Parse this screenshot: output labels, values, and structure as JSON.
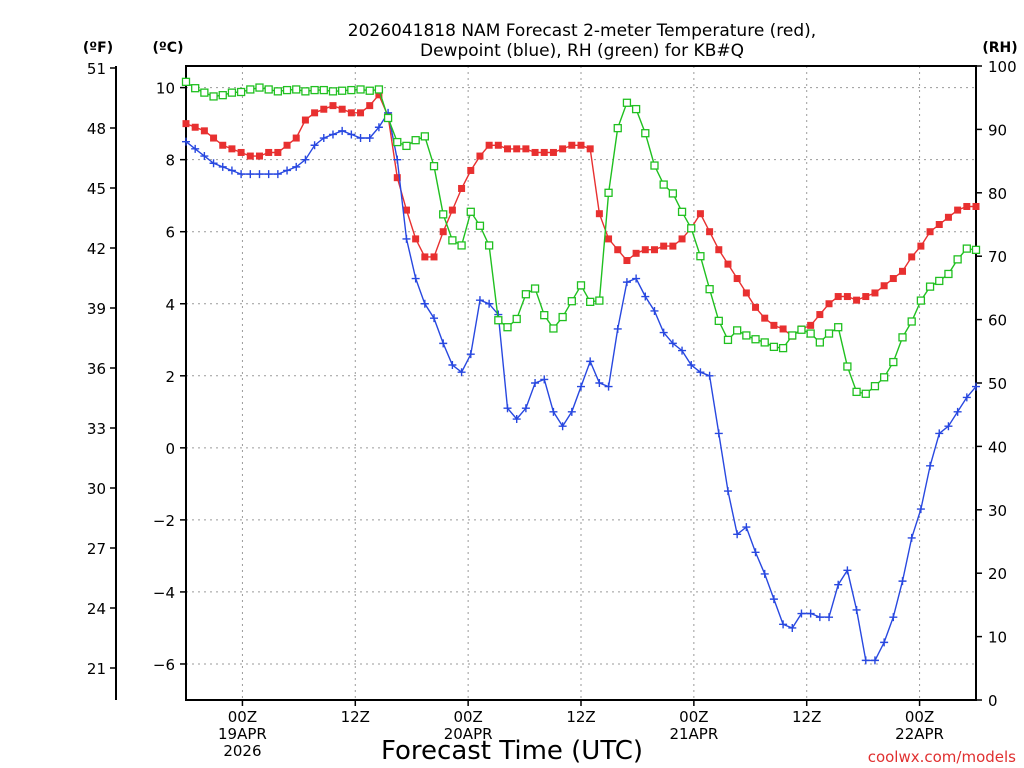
{
  "chart_data": {
    "type": "line",
    "title_line1": "2026041818 NAM Forecast 2-meter Temperature (red),",
    "title_line2": "Dewpoint (blue), RH (green) for KB#Q",
    "xlabel": "Forecast Time (UTC)",
    "left_outer_unit": "(ºF)",
    "left_inner_unit": "(ºC)",
    "right_unit": "(RH)",
    "credit": "coolwx.com/models",
    "x_start_hour": 18,
    "x_end_hour": 102,
    "celsius_range": [
      -7,
      10.6
    ],
    "fahrenheit_range": [
      19.4,
      51.1
    ],
    "rh_range": [
      0,
      100
    ],
    "x_ticks": [
      {
        "hour": 24,
        "line1": "00Z",
        "line2": "19APR",
        "line3": "2026"
      },
      {
        "hour": 36,
        "line1": "12Z",
        "line2": "",
        "line3": ""
      },
      {
        "hour": 48,
        "line1": "00Z",
        "line2": "20APR",
        "line3": ""
      },
      {
        "hour": 60,
        "line1": "12Z",
        "line2": "",
        "line3": ""
      },
      {
        "hour": 72,
        "line1": "00Z",
        "line2": "21APR",
        "line3": ""
      },
      {
        "hour": 84,
        "line1": "12Z",
        "line2": "",
        "line3": ""
      },
      {
        "hour": 96,
        "line1": "00Z",
        "line2": "22APR",
        "line3": ""
      }
    ],
    "celsius_ticks": [
      -6,
      -4,
      -2,
      0,
      2,
      4,
      6,
      8,
      10
    ],
    "fahrenheit_ticks": [
      21,
      24,
      27,
      30,
      33,
      36,
      39,
      42,
      45,
      48,
      51
    ],
    "rh_ticks": [
      0,
      10,
      20,
      30,
      40,
      50,
      60,
      70,
      80,
      90,
      100
    ],
    "grid": true,
    "series": [
      {
        "name": "Temperature",
        "unit": "C",
        "color": "#e83030",
        "marker": "filled-square",
        "values": [
          9.0,
          8.9,
          8.8,
          8.6,
          8.4,
          8.3,
          8.2,
          8.1,
          8.1,
          8.2,
          8.2,
          8.4,
          8.6,
          9.1,
          9.3,
          9.4,
          9.5,
          9.4,
          9.3,
          9.3,
          9.5,
          9.8,
          9.2,
          7.5,
          6.6,
          5.8,
          5.3,
          5.3,
          6.0,
          6.6,
          7.2,
          7.7,
          8.1,
          8.4,
          8.4,
          8.3,
          8.3,
          8.3,
          8.2,
          8.2,
          8.2,
          8.3,
          8.4,
          8.4,
          8.3,
          6.5,
          5.8,
          5.5,
          5.2,
          5.4,
          5.5,
          5.5,
          5.6,
          5.6,
          5.8,
          6.1,
          6.5,
          6.0,
          5.5,
          5.1,
          4.7,
          4.3,
          3.9,
          3.6,
          3.4,
          3.3,
          3.1,
          3.3,
          3.4,
          3.7,
          4.0,
          4.2,
          4.2,
          4.1,
          4.2,
          4.3,
          4.5,
          4.7,
          4.9,
          5.3,
          5.6,
          6.0,
          6.2,
          6.4,
          6.6,
          6.7,
          6.7
        ]
      },
      {
        "name": "Dewpoint",
        "unit": "C",
        "color": "#2848e0",
        "marker": "plus",
        "values": [
          8.5,
          8.3,
          8.1,
          7.9,
          7.8,
          7.7,
          7.6,
          7.6,
          7.6,
          7.6,
          7.6,
          7.7,
          7.8,
          8.0,
          8.4,
          8.6,
          8.7,
          8.8,
          8.7,
          8.6,
          8.6,
          8.9,
          9.3,
          8.0,
          5.8,
          4.7,
          4.0,
          3.6,
          2.9,
          2.3,
          2.1,
          2.6,
          4.1,
          4.0,
          3.7,
          1.1,
          0.8,
          1.1,
          1.8,
          1.9,
          1.0,
          0.6,
          1.0,
          1.7,
          2.4,
          1.8,
          1.7,
          3.3,
          4.6,
          4.7,
          4.2,
          3.8,
          3.2,
          2.9,
          2.7,
          2.3,
          2.1,
          2.0,
          0.4,
          -1.2,
          -2.4,
          -2.2,
          -2.9,
          -3.5,
          -4.2,
          -4.9,
          -5.0,
          -4.6,
          -4.6,
          -4.7,
          -4.7,
          -3.8,
          -3.4,
          -4.5,
          -5.9,
          -5.9,
          -5.4,
          -4.7,
          -3.7,
          -2.5,
          -1.7,
          -0.5,
          0.4,
          0.6,
          1.0,
          1.4,
          1.7
        ]
      },
      {
        "name": "RH",
        "unit": "%",
        "color": "#20c020",
        "marker": "open-square",
        "values": [
          97.5,
          96.5,
          95.8,
          95.2,
          95.4,
          95.8,
          95.9,
          96.3,
          96.6,
          96.3,
          96.0,
          96.2,
          96.3,
          96.0,
          96.2,
          96.2,
          96.0,
          96.1,
          96.2,
          96.3,
          96.1,
          96.3,
          91.8,
          88.0,
          87.4,
          88.3,
          88.9,
          84.2,
          76.6,
          72.5,
          71.7,
          77.0,
          74.8,
          71.7,
          59.9,
          58.8,
          60.1,
          64.0,
          64.9,
          60.7,
          58.6,
          60.4,
          62.9,
          65.4,
          62.8,
          63.0,
          80.0,
          90.2,
          94.2,
          93.2,
          89.4,
          84.3,
          81.3,
          79.9,
          77.0,
          74.4,
          70.0,
          64.8,
          59.8,
          56.8,
          58.3,
          57.5,
          56.9,
          56.4,
          55.7,
          55.5,
          57.5,
          58.4,
          57.8,
          56.4,
          57.8,
          58.8,
          52.6,
          48.6,
          48.3,
          49.5,
          50.9,
          53.3,
          57.2,
          59.7,
          63.0,
          65.2,
          66.1,
          67.2,
          69.5,
          71.2,
          71.0
        ]
      }
    ]
  }
}
